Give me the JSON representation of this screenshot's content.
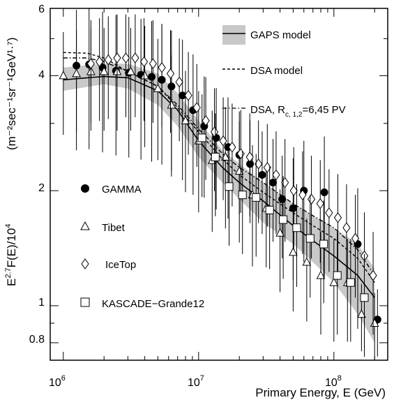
{
  "chart_data": {
    "type": "scatter",
    "title": "",
    "xlabel": "Primary Energy, E (GeV)",
    "ylabel": "E^{2.7}F(E)/10^4  (m^-2 sec^-1 sr^-1 GeV^1.7)",
    "ylabel_main": "E",
    "ylabel_sup1": "2.7",
    "ylabel_mid": "F(E)/10",
    "ylabel_sup2": "4",
    "ylabel_units": "(m⁻²sec⁻¹sr⁻¹GeV¹·⁷)",
    "x_scale": "log",
    "y_scale": "log",
    "xlim": [
      800000,
      250000000
    ],
    "ylim": [
      0.72,
      6
    ],
    "x_ticks": [
      {
        "value": 1000000,
        "base": "10",
        "exp": "6"
      },
      {
        "value": 10000000,
        "base": "10",
        "exp": "7"
      },
      {
        "value": 100000000,
        "base": "10",
        "exp": "8"
      }
    ],
    "y_ticks": [
      {
        "value": 0.8,
        "label": "0.8"
      },
      {
        "value": 1,
        "label": "1"
      },
      {
        "value": 2,
        "label": "2"
      },
      {
        "value": 4,
        "label": "4"
      },
      {
        "value": 6,
        "label": "6"
      }
    ],
    "legend_top": [
      {
        "name": "GAPS model",
        "style": "band"
      },
      {
        "name": "DSA model",
        "style": "dashed"
      },
      {
        "name": "DSA, R_c,1,2=6,45 PV",
        "style": "dashdot",
        "text_main": "DSA, R",
        "text_sub": "c, 1,2",
        "text_tail": "=6,45 PV"
      }
    ],
    "legend_data": [
      {
        "name": "GAMMA",
        "marker": "circle"
      },
      {
        "name": "Tibet",
        "marker": "triangle"
      },
      {
        "name": "IceTop",
        "marker": "diamond"
      },
      {
        "name": "KASCADE−Grande12",
        "marker": "square"
      }
    ],
    "band": {
      "x": [
        1000000,
        2000000,
        3000000,
        5000000,
        7000000,
        10000000,
        15000000,
        20000000,
        30000000,
        50000000,
        70000000,
        100000000,
        150000000,
        200000000
      ],
      "lower": [
        3.65,
        3.8,
        3.7,
        3.35,
        2.95,
        2.45,
        2.1,
        1.9,
        1.65,
        1.45,
        1.3,
        1.15,
        0.95,
        0.8
      ],
      "upper": [
        4.2,
        4.3,
        4.3,
        4.05,
        3.6,
        3.05,
        2.55,
        2.35,
        2.1,
        1.85,
        1.72,
        1.6,
        1.45,
        1.25
      ]
    },
    "series": [
      {
        "name": "GAPS model",
        "style": "solid",
        "x": [
          1000000,
          1500000,
          2000000,
          3000000,
          5000000,
          7000000,
          10000000,
          15000000,
          20000000,
          30000000,
          50000000,
          70000000,
          100000000,
          150000000,
          200000000
        ],
        "y": [
          3.9,
          3.95,
          3.98,
          3.95,
          3.65,
          3.25,
          2.7,
          2.3,
          2.1,
          1.88,
          1.62,
          1.48,
          1.35,
          1.2,
          1.05
        ]
      },
      {
        "name": "DSA model",
        "style": "dashed",
        "x": [
          1000000,
          1500000,
          2000000,
          3000000,
          5000000,
          7000000,
          10000000,
          15000000,
          20000000,
          30000000,
          50000000,
          70000000,
          100000000,
          150000000,
          200000000
        ],
        "y": [
          4.6,
          4.58,
          4.45,
          4.1,
          3.75,
          3.3,
          2.85,
          2.42,
          2.2,
          1.98,
          1.75,
          1.62,
          1.5,
          1.33,
          1.15
        ]
      },
      {
        "name": "DSA, R_c,1,2=6,45 PV",
        "style": "dashdot",
        "x": [
          1000000,
          1500000,
          2000000,
          3000000,
          5000000,
          7000000,
          10000000,
          15000000,
          20000000,
          30000000,
          50000000,
          70000000,
          100000000,
          150000000,
          200000000
        ],
        "y": [
          4.45,
          4.45,
          4.35,
          4.1,
          3.75,
          3.35,
          2.9,
          2.5,
          2.3,
          2.1,
          1.85,
          1.72,
          1.6,
          1.4,
          1.2
        ]
      },
      {
        "name": "GAMMA",
        "marker": "circle",
        "x": [
          1250000,
          1550000,
          1950000,
          2450000,
          3050000,
          3750000,
          4500000,
          5350000,
          6300000,
          7600000,
          9100000,
          11000000,
          13500000,
          16500000,
          20000000,
          24000000,
          29500000,
          35500000,
          41500000,
          50000000,
          60000000,
          85000000,
          150000000,
          210000000
        ],
        "y": [
          4.25,
          4.28,
          4.2,
          4.12,
          4.07,
          4.02,
          3.97,
          3.9,
          3.75,
          3.55,
          3.25,
          2.95,
          2.75,
          2.6,
          2.48,
          2.35,
          2.2,
          2.1,
          1.9,
          1.8,
          2.0,
          1.98,
          1.45,
          0.92
        ],
        "err": [
          0.4,
          0.4,
          0.4,
          0.4,
          0.4,
          0.4,
          0.4,
          0.4,
          0.4,
          0.4,
          0.4,
          0.35,
          0.35,
          0.35,
          0.3,
          0.3,
          0.3,
          0.3,
          0.3,
          0.35,
          0.35,
          0.4,
          0.4,
          0.2
        ]
      },
      {
        "name": "Tibet",
        "marker": "triangle",
        "x": [
          1000000,
          1250000,
          1600000,
          2000000,
          2500000,
          3150000,
          4000000,
          5000000,
          6300000,
          8000000,
          10000000,
          12600000,
          15800000,
          20000000,
          25000000,
          31600000,
          40000000,
          50000000,
          63000000,
          80000000,
          100000000,
          126000000,
          160000000,
          200000000
        ],
        "y": [
          4.0,
          4.05,
          4.1,
          4.1,
          4.1,
          4.1,
          4.0,
          3.7,
          3.35,
          3.05,
          2.7,
          2.4,
          2.45,
          2.25,
          1.95,
          1.8,
          1.55,
          1.38,
          1.3,
          1.2,
          1.15,
          1.15,
          0.95,
          0.9
        ],
        "err": [
          0.3,
          0.3,
          0.3,
          0.3,
          0.3,
          0.3,
          0.35,
          0.35,
          0.35,
          0.35,
          0.35,
          0.35,
          0.35,
          0.35,
          0.35,
          0.3,
          0.3,
          0.3,
          0.3,
          0.3,
          0.3,
          0.3,
          0.2,
          0.2
        ]
      },
      {
        "name": "IceTop",
        "marker": "diamond",
        "x": [
          1600000,
          1850000,
          2150000,
          2500000,
          2900000,
          3400000,
          3950000,
          4600000,
          5350000,
          6200000,
          7200000,
          8400000,
          9700000,
          11300000,
          13100000,
          15200000,
          17700000,
          20500000,
          23900000,
          27700000,
          32200000,
          37400000,
          43500000,
          50500000,
          58700000,
          68200000,
          79300000,
          92100000,
          107000000,
          124000000,
          144000000,
          168000000,
          195000000
        ],
        "y": [
          4.3,
          4.35,
          4.4,
          4.45,
          4.45,
          4.45,
          4.35,
          4.3,
          4.2,
          4.05,
          3.85,
          3.55,
          3.3,
          3.05,
          2.85,
          2.7,
          2.6,
          2.5,
          2.45,
          2.35,
          2.3,
          2.2,
          2.1,
          2.0,
          1.95,
          1.9,
          1.85,
          1.75,
          1.7,
          1.6,
          1.5,
          1.35,
          1.2
        ],
        "err": [
          0.3,
          0.3,
          0.3,
          0.3,
          0.3,
          0.3,
          0.3,
          0.3,
          0.3,
          0.3,
          0.3,
          0.3,
          0.3,
          0.3,
          0.3,
          0.3,
          0.3,
          0.3,
          0.3,
          0.3,
          0.3,
          0.3,
          0.3,
          0.3,
          0.3,
          0.3,
          0.3,
          0.3,
          0.3,
          0.3,
          0.3,
          0.3,
          0.3
        ]
      },
      {
        "name": "KASCADE−Grande12",
        "marker": "square",
        "x": [
          10600000,
          13300000,
          16800000,
          21100000,
          26600000,
          33500000,
          42200000,
          53100000,
          66800000,
          84100000,
          106000000,
          133000000,
          168000000
        ],
        "y": [
          2.75,
          2.45,
          2.05,
          1.95,
          1.92,
          1.78,
          1.68,
          1.6,
          1.5,
          1.45,
          1.2,
          1.15,
          1.05
        ],
        "err": [
          0.3,
          0.3,
          0.3,
          0.3,
          0.3,
          0.3,
          0.3,
          0.3,
          0.3,
          0.3,
          0.3,
          0.3,
          0.3
        ]
      }
    ]
  }
}
